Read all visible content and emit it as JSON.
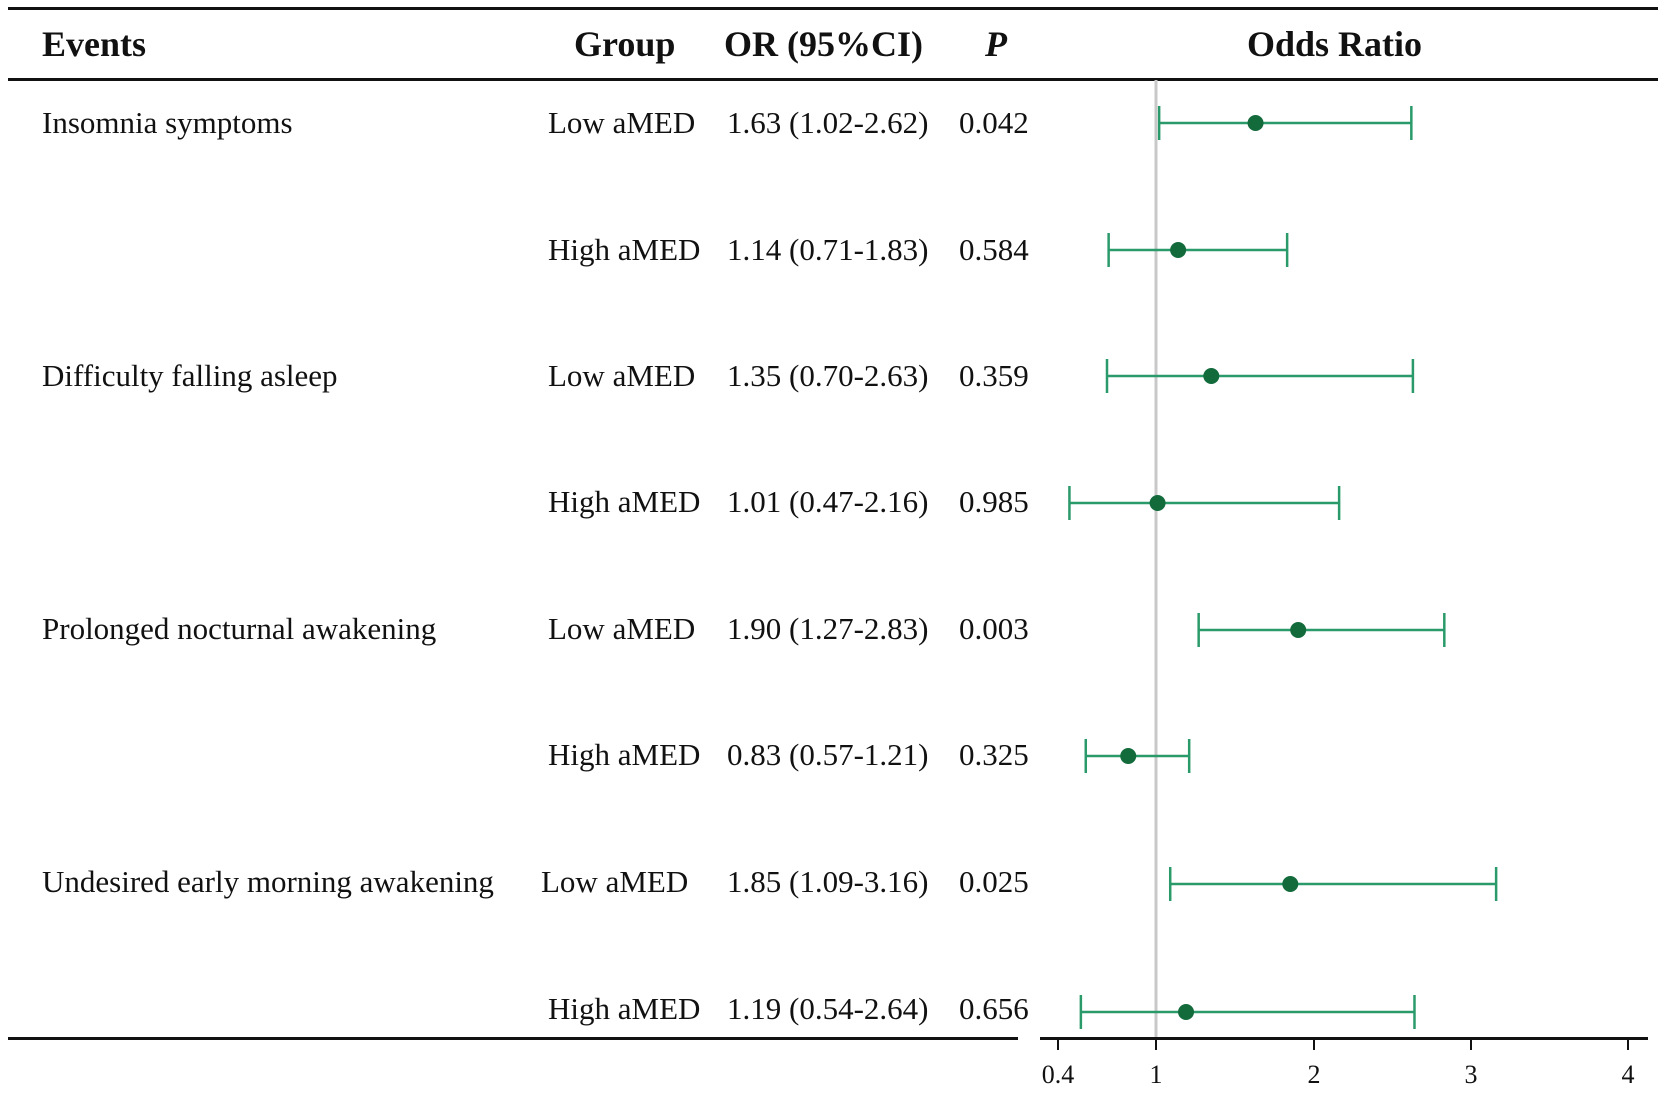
{
  "headers": {
    "events": "Events",
    "group": "Group",
    "or": "OR (95%CI)",
    "p": "P",
    "odds_ratio": "Odds Ratio"
  },
  "rows": [
    {
      "event": "Insomnia symptoms",
      "group": "Low aMED",
      "or_text": "1.63 (1.02-2.62)",
      "p": "0.042"
    },
    {
      "event": "",
      "group": "High aMED",
      "or_text": "1.14 (0.71-1.83)",
      "p": "0.584"
    },
    {
      "event": "Difficulty falling asleep",
      "group": "Low aMED",
      "or_text": "1.35 (0.70-2.63)",
      "p": "0.359"
    },
    {
      "event": "",
      "group": "High aMED",
      "or_text": "1.01 (0.47-2.16)",
      "p": "0.985"
    },
    {
      "event": "Prolonged nocturnal awakening",
      "group": "Low aMED",
      "or_text": "1.90 (1.27-2.83)",
      "p": "0.003"
    },
    {
      "event": "",
      "group": "High aMED",
      "or_text": "0.83 (0.57-1.21)",
      "p": "0.325"
    },
    {
      "event": "Undesired early morning awakening",
      "group": "Low aMED",
      "or_text": "1.85 (1.09-3.16)",
      "p": "0.025"
    },
    {
      "event": "",
      "group": "High aMED",
      "or_text": "1.19 (0.54-2.64)",
      "p": "0.656"
    }
  ],
  "colors": {
    "ci": "#2a9a6a",
    "point": "#136b3c",
    "refline": "#c8c8c8",
    "text": "#111111"
  },
  "chart_data": {
    "type": "forest",
    "title": "Odds Ratio",
    "xlabel": "",
    "ylabel": "",
    "reference_line": 1,
    "xlim": [
      0.4,
      4
    ],
    "xticks": [
      0.4,
      1,
      2,
      3,
      4
    ],
    "xtick_labels": [
      "0.4",
      "1",
      "2",
      "3",
      "4"
    ],
    "categories": [
      "Insomnia symptoms - Low aMED",
      "Insomnia symptoms - High aMED",
      "Difficulty falling asleep - Low aMED",
      "Difficulty falling asleep - High aMED",
      "Prolonged nocturnal awakening - Low aMED",
      "Prolonged nocturnal awakening - High aMED",
      "Undesired early morning awakening - Low aMED",
      "Undesired early morning awakening - High aMED"
    ],
    "or": [
      1.63,
      1.14,
      1.35,
      1.01,
      1.9,
      0.83,
      1.85,
      1.19
    ],
    "lower": [
      1.02,
      0.71,
      0.7,
      0.47,
      1.27,
      0.57,
      1.09,
      0.54
    ],
    "upper": [
      2.62,
      1.83,
      2.63,
      2.16,
      2.83,
      1.21,
      3.16,
      2.64
    ]
  }
}
